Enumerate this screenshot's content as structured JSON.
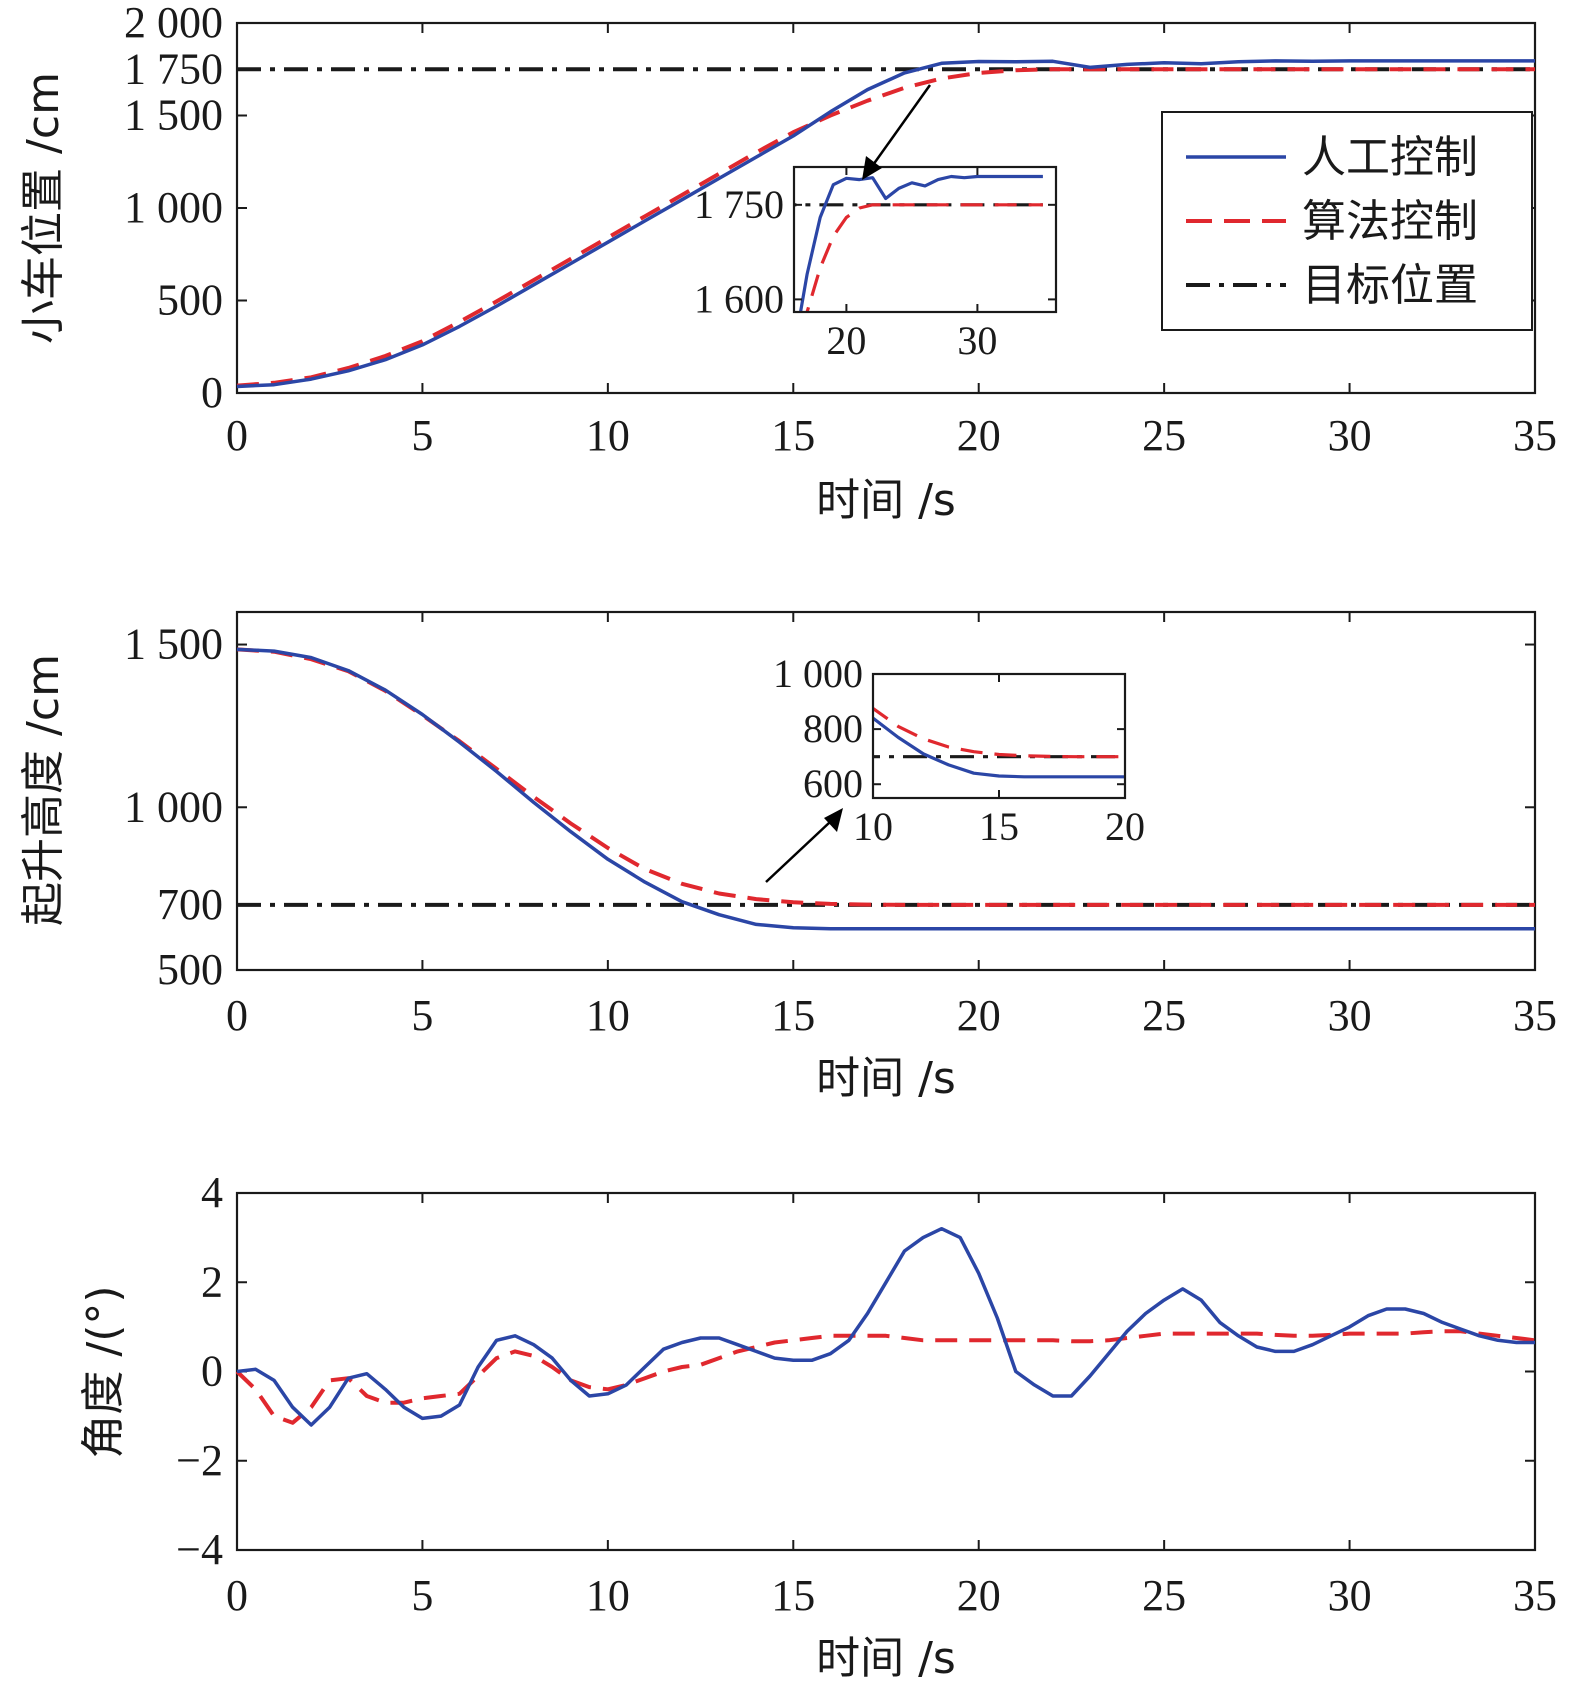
{
  "colors": {
    "manual": "#2b46a6",
    "algorithm": "#e0282e",
    "target": "#1a1a1a"
  },
  "legend": {
    "entries": [
      {
        "key": "manual",
        "label": "人工控制"
      },
      {
        "key": "algorithm",
        "label": "算法控制"
      },
      {
        "key": "target",
        "label": "目标位置"
      }
    ],
    "placement": "right"
  },
  "chart_data": [
    {
      "type": "line",
      "xlabel": "时间 /s",
      "ylabel": "小车位置 /cm",
      "xlim": [
        0,
        35
      ],
      "ylim": [
        0,
        2000
      ],
      "xticks": [
        0,
        5,
        10,
        15,
        20,
        25,
        30,
        35
      ],
      "xtick_labels": [
        "0",
        "5",
        "10",
        "15",
        "20",
        "25",
        "30",
        "35"
      ],
      "yticks": [
        0,
        500,
        1000,
        1500,
        1750,
        2000
      ],
      "ytick_labels": [
        "0",
        "500",
        "1 000",
        "1 500",
        "1 750",
        "2 000"
      ],
      "grid": false,
      "series": [
        {
          "name": "人工控制",
          "x": [
            0,
            1,
            2,
            3,
            4,
            5,
            6,
            7,
            8,
            9,
            10,
            11,
            12,
            13,
            14,
            15,
            16,
            17,
            18,
            19,
            20,
            21,
            22,
            23,
            24,
            25,
            26,
            27,
            28,
            29,
            30,
            31,
            32,
            33,
            34,
            35
          ],
          "values": [
            35,
            45,
            75,
            120,
            180,
            260,
            360,
            470,
            585,
            700,
            815,
            930,
            1045,
            1160,
            1275,
            1390,
            1520,
            1640,
            1730,
            1782,
            1792,
            1790,
            1793,
            1760,
            1776,
            1785,
            1780,
            1790,
            1795,
            1793,
            1795,
            1795,
            1795,
            1795,
            1795,
            1795
          ]
        },
        {
          "name": "算法控制",
          "x": [
            0,
            1,
            2,
            3,
            4,
            5,
            6,
            7,
            8,
            9,
            10,
            11,
            12,
            13,
            14,
            15,
            16,
            17,
            18,
            19,
            20,
            21,
            22,
            23,
            24,
            25,
            26,
            27,
            28,
            29,
            30,
            31,
            32,
            33,
            34,
            35
          ],
          "values": [
            40,
            55,
            85,
            135,
            200,
            280,
            385,
            495,
            610,
            725,
            840,
            955,
            1070,
            1185,
            1300,
            1410,
            1500,
            1580,
            1650,
            1700,
            1730,
            1745,
            1750,
            1750,
            1750,
            1750,
            1750,
            1750,
            1750,
            1750,
            1750,
            1750,
            1750,
            1750,
            1750,
            1750
          ]
        },
        {
          "name": "目标位置",
          "x": [
            0,
            35
          ],
          "values": [
            1750,
            1750
          ]
        }
      ],
      "inset": {
        "xlim": [
          16,
          36
        ],
        "ylim": [
          1580,
          1810
        ],
        "xticks": [
          20,
          30
        ],
        "xtick_labels": [
          "20",
          "30"
        ],
        "yticks": [
          1600,
          1750
        ],
        "ytick_labels": [
          "1 600",
          "1 750"
        ]
      }
    },
    {
      "type": "line",
      "xlabel": "时间 /s",
      "ylabel": "起升高度 /cm",
      "xlim": [
        0,
        35
      ],
      "ylim": [
        500,
        1600
      ],
      "xticks": [
        0,
        5,
        10,
        15,
        20,
        25,
        30,
        35
      ],
      "xtick_labels": [
        "0",
        "5",
        "10",
        "15",
        "20",
        "25",
        "30",
        "35"
      ],
      "yticks": [
        500,
        700,
        1000,
        1500
      ],
      "ytick_labels": [
        "500",
        "700",
        "1 000",
        "1 500"
      ],
      "grid": false,
      "series": [
        {
          "name": "人工控制",
          "x": [
            0,
            1,
            2,
            3,
            4,
            5,
            6,
            7,
            8,
            9,
            10,
            11,
            12,
            13,
            14,
            15,
            16,
            17,
            18,
            20,
            25,
            30,
            35
          ],
          "values": [
            1485,
            1480,
            1460,
            1420,
            1360,
            1285,
            1200,
            1110,
            1015,
            925,
            840,
            770,
            710,
            670,
            640,
            630,
            627,
            627,
            627,
            627,
            627,
            627,
            627
          ]
        },
        {
          "name": "算法控制",
          "x": [
            0,
            1,
            2,
            3,
            4,
            5,
            6,
            7,
            8,
            9,
            10,
            11,
            12,
            13,
            14,
            15,
            16,
            17,
            18,
            20,
            25,
            30,
            35
          ],
          "values": [
            1485,
            1478,
            1455,
            1418,
            1358,
            1283,
            1203,
            1118,
            1032,
            950,
            875,
            810,
            765,
            735,
            718,
            708,
            703,
            701,
            700,
            700,
            700,
            700,
            700
          ]
        },
        {
          "name": "目标位置",
          "x": [
            0,
            35
          ],
          "values": [
            700,
            700
          ]
        }
      ],
      "inset": {
        "xlim": [
          10,
          20
        ],
        "ylim": [
          550,
          1000
        ],
        "xticks": [
          10,
          15,
          20
        ],
        "xtick_labels": [
          "10",
          "15",
          "20"
        ],
        "yticks": [
          600,
          800,
          1000
        ],
        "ytick_labels": [
          "600",
          "800",
          "1 000"
        ]
      }
    },
    {
      "type": "line",
      "xlabel": "时间 /s",
      "ylabel": "角度 /(°)",
      "xlim": [
        0,
        35
      ],
      "ylim": [
        -4,
        4
      ],
      "xticks": [
        0,
        5,
        10,
        15,
        20,
        25,
        30,
        35
      ],
      "xtick_labels": [
        "0",
        "5",
        "10",
        "15",
        "20",
        "25",
        "30",
        "35"
      ],
      "yticks": [
        -4,
        -2,
        0,
        2,
        4
      ],
      "ytick_labels": [
        "−4",
        "−2",
        "0",
        "2",
        "4"
      ],
      "grid": false,
      "series": [
        {
          "name": "人工控制",
          "x": [
            0,
            0.5,
            1,
            1.5,
            2,
            2.5,
            3,
            3.5,
            4,
            4.5,
            5,
            5.5,
            6,
            6.5,
            7,
            7.5,
            8,
            8.5,
            9,
            9.5,
            10,
            10.5,
            11,
            11.5,
            12,
            12.5,
            13,
            13.5,
            14,
            14.5,
            15,
            15.5,
            16,
            16.5,
            17,
            17.5,
            18,
            18.5,
            19,
            19.5,
            20,
            20.5,
            21,
            21.5,
            22,
            22.5,
            23,
            23.5,
            24,
            24.5,
            25,
            25.5,
            26,
            26.5,
            27,
            27.5,
            28,
            28.5,
            29,
            29.5,
            30,
            30.5,
            31,
            31.5,
            32,
            32.5,
            33,
            33.5,
            34,
            34.5,
            35
          ],
          "values": [
            0,
            0.05,
            -0.2,
            -0.8,
            -1.2,
            -0.8,
            -0.15,
            -0.05,
            -0.4,
            -0.8,
            -1.05,
            -1.0,
            -0.75,
            0.1,
            0.7,
            0.8,
            0.6,
            0.3,
            -0.2,
            -0.55,
            -0.5,
            -0.3,
            0.1,
            0.5,
            0.65,
            0.75,
            0.75,
            0.6,
            0.45,
            0.3,
            0.25,
            0.25,
            0.4,
            0.7,
            1.3,
            2.0,
            2.7,
            3.0,
            3.2,
            3.0,
            2.2,
            1.2,
            0.0,
            -0.3,
            -0.55,
            -0.55,
            -0.1,
            0.4,
            0.9,
            1.3,
            1.6,
            1.85,
            1.6,
            1.1,
            0.8,
            0.55,
            0.45,
            0.45,
            0.6,
            0.8,
            1.0,
            1.25,
            1.4,
            1.4,
            1.3,
            1.1,
            0.95,
            0.8,
            0.7,
            0.65,
            0.65
          ]
        },
        {
          "name": "算法控制",
          "x": [
            0,
            0.5,
            1,
            1.5,
            2,
            2.5,
            3,
            3.5,
            4,
            4.5,
            5,
            5.5,
            6,
            6.5,
            7,
            7.5,
            8,
            8.5,
            9,
            9.5,
            10,
            10.5,
            11,
            11.5,
            12,
            12.5,
            13,
            13.5,
            14,
            14.5,
            15,
            15.5,
            16,
            16.5,
            17,
            17.5,
            18,
            18.5,
            19,
            19.5,
            20,
            20.5,
            21,
            21.5,
            22,
            22.5,
            23,
            23.5,
            24,
            24.5,
            25,
            25.5,
            26,
            26.5,
            27,
            27.5,
            28,
            28.5,
            29,
            29.5,
            30,
            30.5,
            31,
            31.5,
            32,
            32.5,
            33,
            33.5,
            34,
            34.5,
            35
          ],
          "values": [
            0,
            -0.4,
            -1.0,
            -1.15,
            -0.8,
            -0.2,
            -0.15,
            -0.55,
            -0.7,
            -0.7,
            -0.6,
            -0.55,
            -0.5,
            -0.1,
            0.3,
            0.45,
            0.35,
            0.1,
            -0.2,
            -0.35,
            -0.4,
            -0.3,
            -0.15,
            0.0,
            0.1,
            0.15,
            0.3,
            0.45,
            0.55,
            0.65,
            0.7,
            0.75,
            0.8,
            0.8,
            0.8,
            0.8,
            0.75,
            0.7,
            0.7,
            0.7,
            0.7,
            0.7,
            0.7,
            0.7,
            0.7,
            0.68,
            0.68,
            0.7,
            0.75,
            0.8,
            0.85,
            0.85,
            0.85,
            0.85,
            0.85,
            0.85,
            0.82,
            0.8,
            0.8,
            0.82,
            0.85,
            0.85,
            0.85,
            0.85,
            0.88,
            0.9,
            0.9,
            0.85,
            0.8,
            0.75,
            0.7
          ]
        }
      ]
    }
  ]
}
